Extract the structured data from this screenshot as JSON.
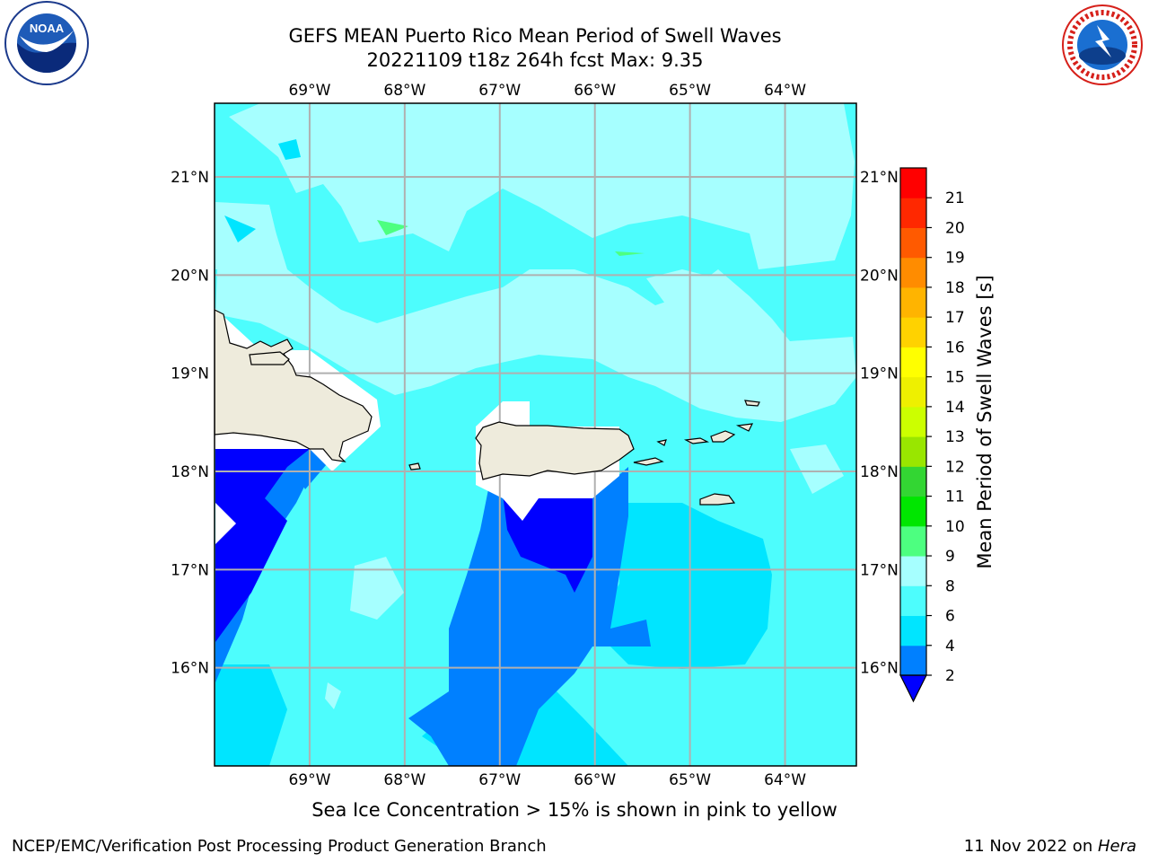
{
  "title": {
    "line1": "GEFS MEAN Puerto Rico Mean Period of Swell Waves",
    "line2": "20221109 t18z 264h fcst   Max: 9.35"
  },
  "logos": {
    "left": {
      "name": "noaa-logo",
      "text": "NOAA",
      "ring_text": "NATIONAL OCEANIC AND ATMOSPHERIC ADMINISTRATION · U.S. DEPARTMENT OF COMMERCE"
    },
    "right": {
      "name": "nws-logo",
      "ring_text": "NATIONAL WEATHER SERVICE"
    }
  },
  "map": {
    "lon_ticks": [
      "69°W",
      "68°W",
      "67°W",
      "66°W",
      "65°W",
      "64°W"
    ],
    "lat_ticks": [
      "21°N",
      "20°N",
      "19°N",
      "18°N",
      "17°N",
      "16°N"
    ],
    "lon_range": [
      -70.0,
      -63.25
    ],
    "lat_range": [
      15.0,
      21.75
    ],
    "grid": true,
    "land_color": "#eeebdc",
    "masked_color": "#ffffff",
    "coastline_color": "#000000"
  },
  "colorbar": {
    "label": "Mean Period of Swell Waves [s]",
    "levels": [
      "2",
      "4",
      "6",
      "8",
      "9",
      "10",
      "11",
      "12",
      "13",
      "14",
      "15",
      "16",
      "17",
      "18",
      "19",
      "20",
      "21"
    ],
    "colors": [
      "#0080ff",
      "#00e5ff",
      "#4dfdfd",
      "#a6ffff",
      "#4dff80",
      "#00e600",
      "#33d633",
      "#99e600",
      "#ccff00",
      "#eef000",
      "#ffff00",
      "#ffd200",
      "#ffb400",
      "#ff8c00",
      "#ff5a00",
      "#ff2800",
      "#ff0000"
    ],
    "under_color": "#0000ff",
    "extend": "min"
  },
  "caption": "Sea Ice Concentration > 15% is shown in pink to yellow",
  "footer": {
    "left": "NCEP/EMC/Verification Post Processing Product Generation Branch",
    "right_prefix": "11 Nov 2022 on ",
    "right_host": "Hera"
  }
}
